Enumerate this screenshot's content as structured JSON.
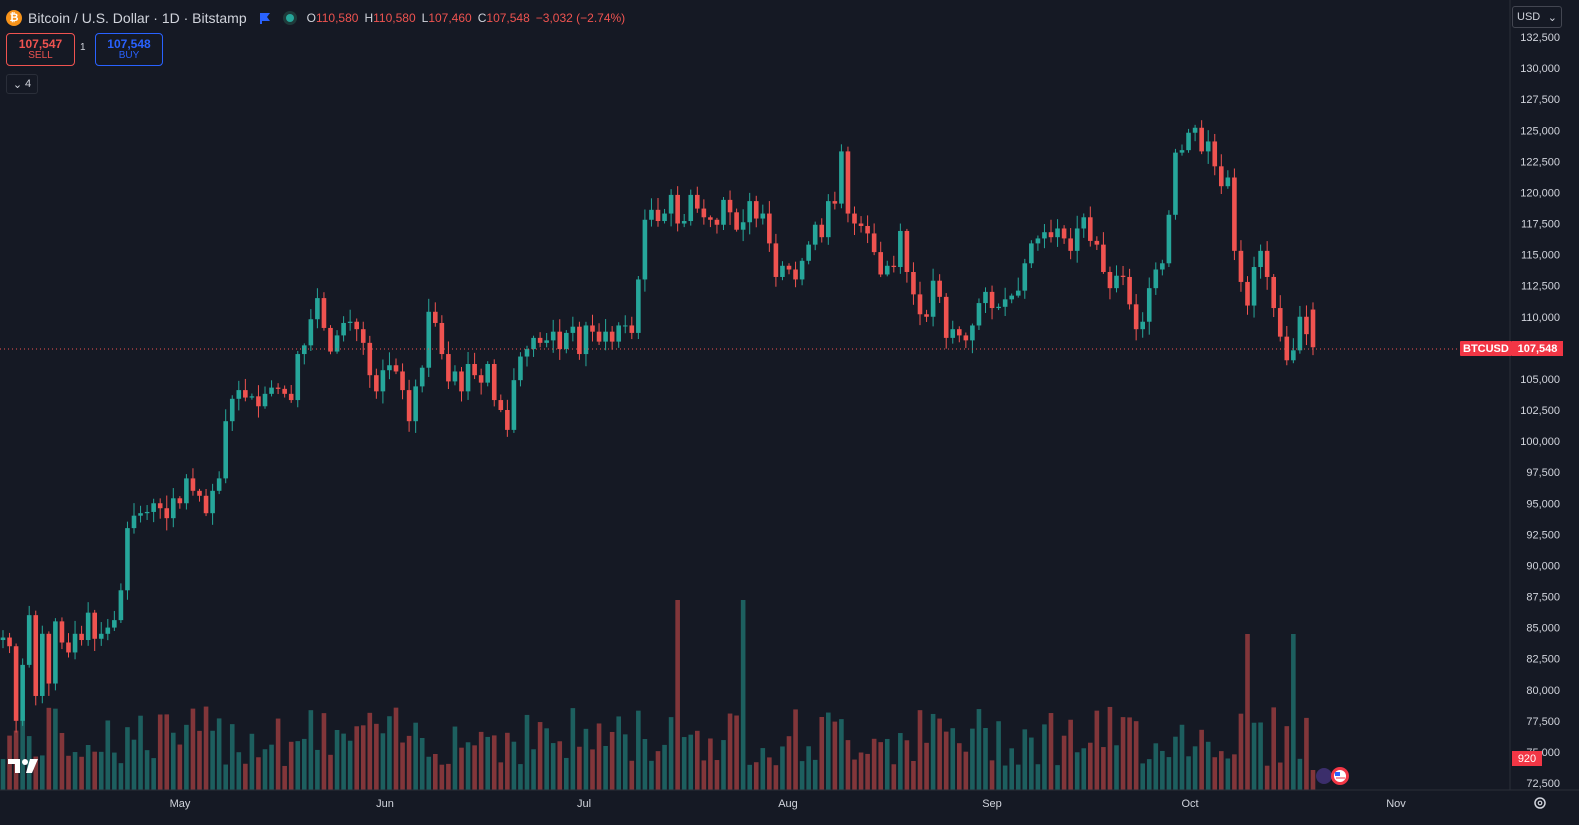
{
  "header": {
    "coin_icon": "bitcoin-icon",
    "coin_glyph": "₿",
    "title": "Bitcoin / U.S. Dollar · 1D · Bitstamp",
    "ohlc": [
      {
        "k": "O",
        "v": "110,580"
      },
      {
        "k": "H",
        "v": "110,580"
      },
      {
        "k": "L",
        "v": "107,460"
      },
      {
        "k": "C",
        "v": "107,548"
      },
      {
        "k": "",
        "v": "−3,032 (−2.74%)"
      }
    ]
  },
  "trade": {
    "sell_price": "107,547",
    "sell_label": "SELL",
    "quantity": "1",
    "buy_price": "107,548",
    "buy_label": "BUY"
  },
  "indicators_toggle": "4",
  "currency": "USD",
  "current": {
    "symbol": "BTCUSD",
    "price": "107,548",
    "volume": "920"
  },
  "colors": {
    "up": "#26a69a",
    "down": "#ef5350",
    "background": "#151924"
  },
  "chart_data": {
    "type": "candlestick",
    "y_ticks": [
      "132,500",
      "130,000",
      "127,500",
      "125,000",
      "122,500",
      "120,000",
      "117,500",
      "115,000",
      "112,500",
      "110,000",
      "107,500",
      "105,000",
      "102,500",
      "100,000",
      "97,500",
      "95,000",
      "92,500",
      "90,000",
      "87,500",
      "85,000",
      "82,500",
      "80,000",
      "77,500",
      "75,000",
      "72,500"
    ],
    "y_range": [
      72500,
      132500
    ],
    "x_labels": [
      "May",
      "Jun",
      "Jul",
      "Aug",
      "Sep",
      "Oct",
      "Nov"
    ],
    "closes": [
      84200,
      83500,
      77500,
      82000,
      86000,
      79500,
      84500,
      80500,
      85500,
      83800,
      83000,
      84500,
      84000,
      86200,
      84100,
      84500,
      85000,
      85600,
      88000,
      93000,
      94000,
      94200,
      94300,
      95000,
      94600,
      93800,
      95400,
      95000,
      97000,
      96000,
      95600,
      94200,
      96000,
      97000,
      101600,
      103400,
      104100,
      103500,
      103600,
      102800,
      103800,
      104300,
      104200,
      103800,
      103300,
      107000,
      107700,
      109800,
      111500,
      109100,
      107200,
      108500,
      109500,
      109600,
      109000,
      107900,
      105300,
      104000,
      105700,
      106100,
      105600,
      104100,
      101600,
      104400,
      105900,
      110400,
      109500,
      107000,
      104800,
      105600,
      104000,
      106200,
      105300,
      104700,
      106200,
      103300,
      102500,
      100900,
      104900,
      106800,
      107400,
      108300,
      107900,
      108100,
      108800,
      107400,
      108700,
      109200,
      107000,
      109300,
      108800,
      108000,
      108800,
      108000,
      109300,
      109300,
      108700,
      113000,
      117800,
      118600,
      117700,
      118300,
      119800,
      117500,
      117700,
      119800,
      118700,
      118000,
      117800,
      117400,
      119400,
      118400,
      117000,
      117600,
      119300,
      117900,
      118300,
      115900,
      113200,
      114100,
      113800,
      113000,
      114500,
      115800,
      117400,
      116400,
      119300,
      119100,
      123300,
      118300,
      117500,
      117300,
      116700,
      115200,
      113400,
      114100,
      114000,
      116900,
      113600,
      111800,
      110200,
      110000,
      112900,
      111600,
      108300,
      109000,
      108500,
      108100,
      109300,
      111100,
      112000,
      110700,
      110800,
      111400,
      111700,
      112100,
      114300,
      115900,
      116300,
      116800,
      116400,
      117100,
      116300,
      115300,
      117100,
      118000,
      116100,
      115800,
      113600,
      112300,
      113300,
      113200,
      111000,
      109000,
      109600,
      112300,
      113800,
      114300,
      118200,
      123200,
      123400,
      124800,
      125200,
      123300,
      124100,
      122100,
      120500,
      121200,
      115300,
      112800,
      110900,
      114000,
      115300,
      113200,
      110700,
      108400,
      106500,
      107300,
      110000,
      108600,
      107548
    ],
    "volume_scale": [
      0,
      100
    ]
  }
}
